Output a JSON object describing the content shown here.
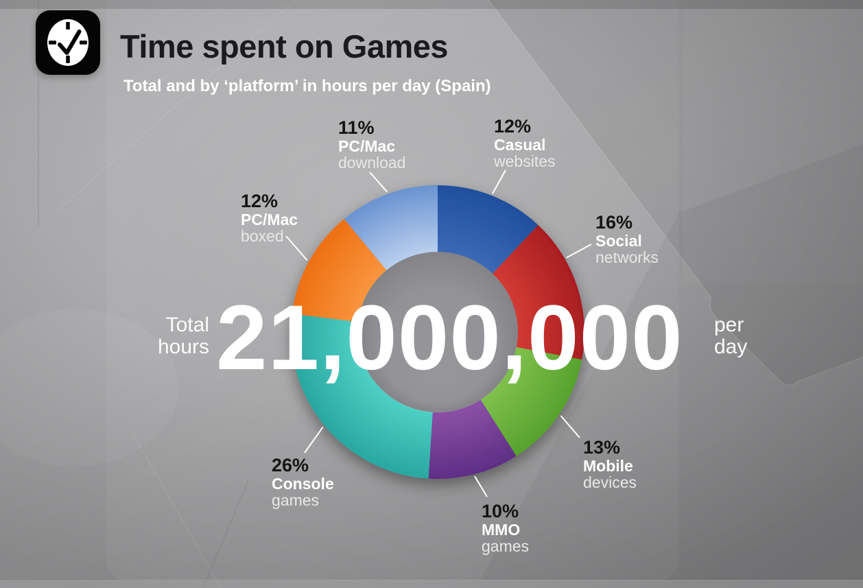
{
  "header": {
    "icon": "clock-icon",
    "title": "Time spent on Games",
    "subtitle": "Total and by ‘platform’ in hours per day (Spain)"
  },
  "center": {
    "left_line1": "Total",
    "left_line2": "hours",
    "value": "21,000,000",
    "right_line1": "per",
    "right_line2": "day"
  },
  "palette": {
    "background": "#a4a4a6",
    "title_text": "#1b1b1d",
    "light_text": "#ffffff"
  },
  "chart_data": {
    "type": "pie",
    "subtype": "donut",
    "title": "Time spent on Games",
    "subtitle": "Total and by ‘platform’ in hours per day (Spain)",
    "units": "% of total hours per day",
    "total": {
      "label": "Total hours",
      "value": "21,000,000",
      "suffix": "per day"
    },
    "start_angle_deg": 0,
    "direction": "clockwise",
    "segments": [
      {
        "label": "Casual websites",
        "value": 12,
        "pct_label": "12%",
        "line1": "Casual",
        "line2": "websites",
        "color_inner": "#3b69b5",
        "color_outer": "#1f4f9e"
      },
      {
        "label": "Social networks",
        "value": 16,
        "pct_label": "16%",
        "line1": "Social",
        "line2": "networks",
        "color_inner": "#d23a34",
        "color_outer": "#a81e21"
      },
      {
        "label": "Mobile devices",
        "value": 13,
        "pct_label": "13%",
        "line1": "Mobile",
        "line2": "devices",
        "color_inner": "#80c14d",
        "color_outer": "#57a22d"
      },
      {
        "label": "MMO games",
        "value": 10,
        "pct_label": "10%",
        "line1": "MMO",
        "line2": "games",
        "color_inner": "#8b51a6",
        "color_outer": "#5e2e85"
      },
      {
        "label": "Console games",
        "value": 26,
        "pct_label": "26%",
        "line1": "Console",
        "line2": "games",
        "color_inner": "#4fd0c5",
        "color_outer": "#29a7a1"
      },
      {
        "label": "PC/Mac boxed",
        "value": 12,
        "pct_label": "12%",
        "line1": "PC/Mac",
        "line2": "boxed",
        "color_inner": "#f9953f",
        "color_outer": "#ee7013"
      },
      {
        "label": "PC/Mac download",
        "value": 11,
        "pct_label": "11%",
        "line1": "PC/Mac",
        "line2": "download",
        "color_inner": "#bacfee",
        "color_outer": "#6a93d1"
      }
    ]
  }
}
